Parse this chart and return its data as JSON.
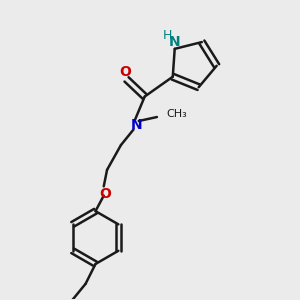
{
  "background_color": "#ebebeb",
  "bond_color": "#1a1a1a",
  "N_color": "#0000cc",
  "O_color": "#cc0000",
  "NH_color": "#008080",
  "figsize": [
    3.0,
    3.0
  ],
  "dpi": 100,
  "xlim": [
    0,
    10
  ],
  "ylim": [
    0,
    10
  ]
}
